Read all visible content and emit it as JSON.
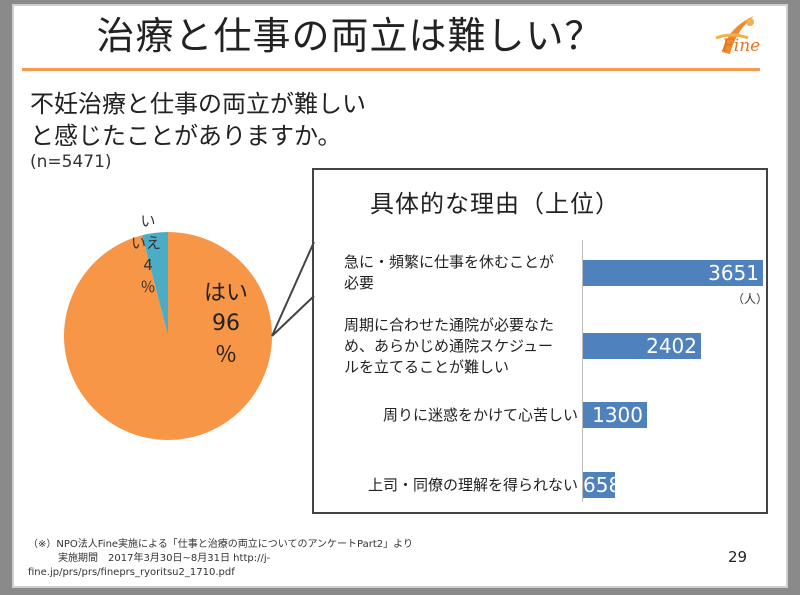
{
  "slide": {
    "title": "治療と仕事の両立は難しい？",
    "logo_text": "Fine",
    "question_line1": "不妊治療と仕事の両立が難しい",
    "question_line2": "と感じたことがありますか。",
    "n_label": "(n=5471)",
    "page_number": "29",
    "footnote_line1": "（※）NPO法人Fine実施による「仕事と治療の両立についてのアンケートPart2」より",
    "footnote_line2": "　　　実施期間　2017年3月30日~8月31日 http://j-",
    "footnote_line3": "fine.jp/prs/prs/fineprs_ryoritsu2_1710.pdf"
  },
  "colors": {
    "yes": "#f79646",
    "no": "#4bacc6",
    "bar": "#4f81bd",
    "accent": "#f19a4f"
  },
  "chart_data": [
    {
      "type": "pie",
      "title": "不妊治療と仕事の両立が難しいと感じたことがありますか。",
      "n": 5471,
      "slices": [
        {
          "label": "はい",
          "value": 96,
          "unit": "%",
          "label_text": [
            "はい",
            "96",
            "％"
          ]
        },
        {
          "label": "いいえ",
          "value": 4,
          "unit": "%",
          "label_text": [
            "い",
            "いえ",
            "4",
            "％"
          ]
        }
      ]
    },
    {
      "type": "bar",
      "orientation": "horizontal",
      "title": "具体的な理由（上位）",
      "unit": "（人）",
      "xlim": [
        0,
        3651
      ],
      "categories": [
        [
          "急に・頻繁に仕事を休むことが",
          "必要"
        ],
        [
          "周期に合わせた通院が必要なた",
          "め、あらかじめ通院スケジュー",
          "ルを立てることが難しい"
        ],
        [
          "周りに迷惑をかけて心苦しい"
        ],
        [
          "上司・同僚の理解を得られない"
        ]
      ],
      "values": [
        3651,
        2402,
        1300,
        658
      ]
    }
  ]
}
